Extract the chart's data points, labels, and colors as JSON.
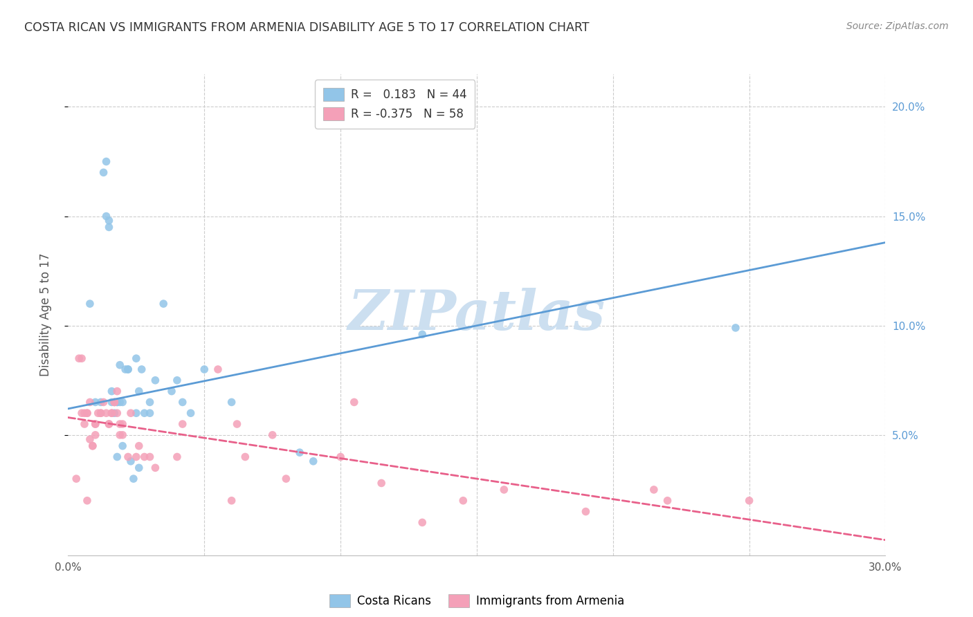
{
  "title": "COSTA RICAN VS IMMIGRANTS FROM ARMENIA DISABILITY AGE 5 TO 17 CORRELATION CHART",
  "source": "Source: ZipAtlas.com",
  "ylabel": "Disability Age 5 to 17",
  "xlim": [
    0.0,
    0.3
  ],
  "ylim": [
    -0.005,
    0.215
  ],
  "xtick_labels": [
    "0.0%",
    "",
    "",
    "",
    "",
    "",
    "30.0%"
  ],
  "xtick_values": [
    0.0,
    0.05,
    0.1,
    0.15,
    0.2,
    0.25,
    0.3
  ],
  "ytick_labels": [
    "5.0%",
    "10.0%",
    "15.0%",
    "20.0%"
  ],
  "ytick_values": [
    0.05,
    0.1,
    0.15,
    0.2
  ],
  "blue_color": "#92C5E8",
  "pink_color": "#F4A0B8",
  "blue_line_color": "#5B9BD5",
  "pink_line_color": "#E8608A",
  "watermark": "ZIPatlas",
  "watermark_color": "#CCDFF0",
  "blue_scatter_x": [
    0.008,
    0.01,
    0.012,
    0.013,
    0.014,
    0.014,
    0.015,
    0.015,
    0.016,
    0.016,
    0.017,
    0.017,
    0.018,
    0.018,
    0.018,
    0.019,
    0.019,
    0.02,
    0.02,
    0.021,
    0.022,
    0.022,
    0.023,
    0.024,
    0.025,
    0.025,
    0.026,
    0.026,
    0.027,
    0.028,
    0.03,
    0.03,
    0.032,
    0.035,
    0.038,
    0.04,
    0.042,
    0.045,
    0.05,
    0.06,
    0.085,
    0.09,
    0.13,
    0.245
  ],
  "blue_scatter_y": [
    0.11,
    0.065,
    0.065,
    0.17,
    0.175,
    0.15,
    0.148,
    0.145,
    0.065,
    0.07,
    0.06,
    0.065,
    0.04,
    0.065,
    0.065,
    0.065,
    0.082,
    0.045,
    0.065,
    0.08,
    0.08,
    0.08,
    0.038,
    0.03,
    0.06,
    0.085,
    0.035,
    0.07,
    0.08,
    0.06,
    0.06,
    0.065,
    0.075,
    0.11,
    0.07,
    0.075,
    0.065,
    0.06,
    0.08,
    0.065,
    0.042,
    0.038,
    0.096,
    0.099
  ],
  "pink_scatter_x": [
    0.003,
    0.004,
    0.005,
    0.005,
    0.006,
    0.006,
    0.007,
    0.007,
    0.007,
    0.008,
    0.008,
    0.009,
    0.009,
    0.01,
    0.01,
    0.01,
    0.011,
    0.012,
    0.012,
    0.013,
    0.014,
    0.015,
    0.015,
    0.016,
    0.016,
    0.017,
    0.017,
    0.018,
    0.018,
    0.019,
    0.019,
    0.02,
    0.02,
    0.022,
    0.023,
    0.025,
    0.026,
    0.028,
    0.03,
    0.032,
    0.04,
    0.042,
    0.055,
    0.06,
    0.062,
    0.065,
    0.075,
    0.08,
    0.1,
    0.105,
    0.115,
    0.13,
    0.145,
    0.16,
    0.19,
    0.215,
    0.22,
    0.25
  ],
  "pink_scatter_y": [
    0.03,
    0.085,
    0.085,
    0.06,
    0.06,
    0.055,
    0.02,
    0.06,
    0.06,
    0.048,
    0.065,
    0.045,
    0.045,
    0.05,
    0.055,
    0.055,
    0.06,
    0.06,
    0.06,
    0.065,
    0.06,
    0.055,
    0.055,
    0.06,
    0.06,
    0.065,
    0.065,
    0.07,
    0.06,
    0.05,
    0.055,
    0.05,
    0.055,
    0.04,
    0.06,
    0.04,
    0.045,
    0.04,
    0.04,
    0.035,
    0.04,
    0.055,
    0.08,
    0.02,
    0.055,
    0.04,
    0.05,
    0.03,
    0.04,
    0.065,
    0.028,
    0.01,
    0.02,
    0.025,
    0.015,
    0.025,
    0.02,
    0.02
  ],
  "blue_trend_x": [
    0.0,
    0.3
  ],
  "blue_trend_y": [
    0.062,
    0.138
  ],
  "pink_trend_x": [
    0.0,
    0.3
  ],
  "pink_trend_y": [
    0.058,
    0.002
  ],
  "bg_color": "#FFFFFF",
  "grid_color": "#CCCCCC"
}
